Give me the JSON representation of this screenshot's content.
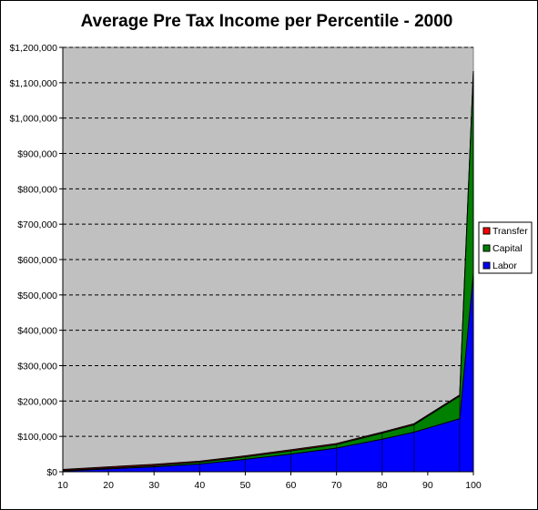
{
  "chart_data": {
    "type": "area",
    "title": "Average Pre Tax Income per Percentile - 2000",
    "xlabel": "",
    "ylabel": "",
    "x": [
      10,
      20,
      30,
      40,
      50,
      60,
      70,
      80,
      87,
      97,
      100
    ],
    "xticks": [
      10,
      20,
      30,
      40,
      50,
      60,
      70,
      80,
      90,
      100
    ],
    "xlim": [
      10,
      100
    ],
    "ylim": [
      0,
      1200000
    ],
    "ytick_labels": [
      "$0",
      "$100,000",
      "$200,000",
      "$300,000",
      "$400,000",
      "$500,000",
      "$600,000",
      "$700,000",
      "$800,000",
      "$900,000",
      "$1,000,000",
      "$1,100,000",
      "$1,200,000"
    ],
    "stacked": true,
    "grid": true,
    "plot_background": "#c0c0c0",
    "legend_position": "right",
    "series": [
      {
        "name": "Labor",
        "color": "#0000ff",
        "values": [
          2000,
          8000,
          14000,
          22000,
          35000,
          50000,
          67000,
          92000,
          112000,
          150000,
          560000
        ]
      },
      {
        "name": "Capital",
        "color": "#008000",
        "values": [
          1500,
          2500,
          3500,
          5000,
          7000,
          9000,
          10000,
          17000,
          21000,
          64000,
          570000
        ]
      },
      {
        "name": "Transfer",
        "color": "#ff0000",
        "values": [
          3000,
          3500,
          3500,
          3000,
          3000,
          3000,
          3000,
          3000,
          3000,
          3000,
          3000
        ]
      }
    ]
  }
}
